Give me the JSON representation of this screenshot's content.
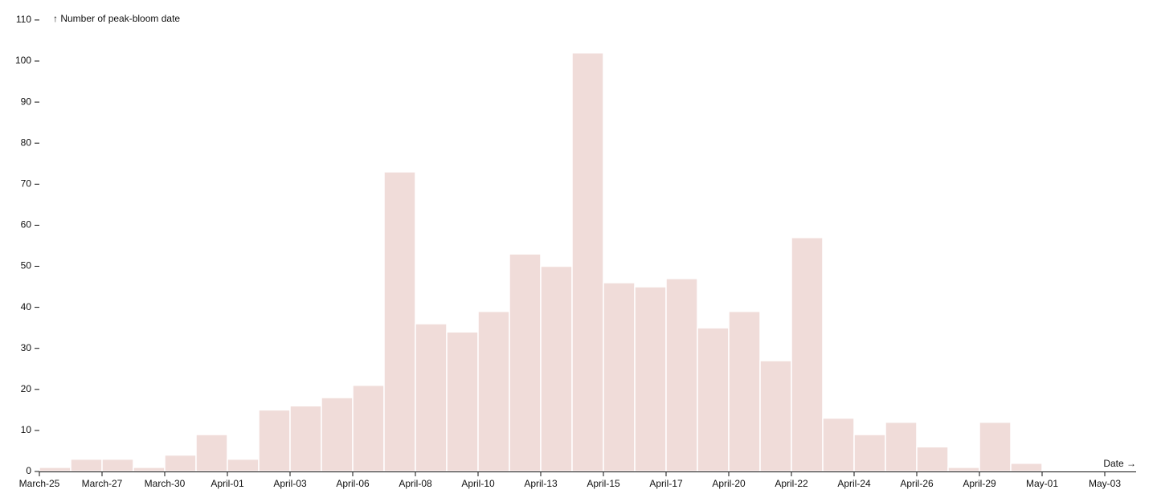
{
  "chart_data": {
    "type": "histogram",
    "y_label": "↑ Number of peak-bloom date",
    "x_label": "Date →",
    "bins": [
      0,
      1,
      2,
      3,
      4,
      5,
      6,
      7,
      8,
      9,
      10,
      11,
      12,
      13,
      14,
      15,
      16,
      17,
      18,
      19,
      20,
      21,
      22,
      23,
      24,
      25,
      26,
      27,
      28,
      29,
      30,
      31,
      32,
      33,
      34,
      35
    ],
    "values": [
      1,
      3,
      3,
      1,
      4,
      9,
      3,
      15,
      16,
      18,
      21,
      73,
      36,
      34,
      39,
      53,
      50,
      102,
      46,
      45,
      47,
      35,
      39,
      27,
      57,
      13,
      9,
      12,
      6,
      1,
      12,
      2,
      0,
      0,
      0
    ],
    "color": "#f0dcd9",
    "xlim": [
      0,
      35
    ],
    "xticks": [
      {
        "value": 0,
        "label": "March-25"
      },
      {
        "value": 2,
        "label": "March-27"
      },
      {
        "value": 4,
        "label": "March-30"
      },
      {
        "value": 6,
        "label": "April-01"
      },
      {
        "value": 8,
        "label": "April-03"
      },
      {
        "value": 10,
        "label": "April-06"
      },
      {
        "value": 12,
        "label": "April-08"
      },
      {
        "value": 14,
        "label": "April-10"
      },
      {
        "value": 16,
        "label": "April-13"
      },
      {
        "value": 18,
        "label": "April-15"
      },
      {
        "value": 20,
        "label": "April-17"
      },
      {
        "value": 22,
        "label": "April-20"
      },
      {
        "value": 24,
        "label": "April-22"
      },
      {
        "value": 26,
        "label": "April-24"
      },
      {
        "value": 28,
        "label": "April-26"
      },
      {
        "value": 30,
        "label": "April-29"
      },
      {
        "value": 32,
        "label": "May-01"
      },
      {
        "value": 34,
        "label": "May-03"
      }
    ],
    "ylim": [
      0,
      110
    ],
    "yticks": [
      0,
      10,
      20,
      30,
      40,
      50,
      60,
      70,
      80,
      90,
      100,
      110
    ]
  }
}
